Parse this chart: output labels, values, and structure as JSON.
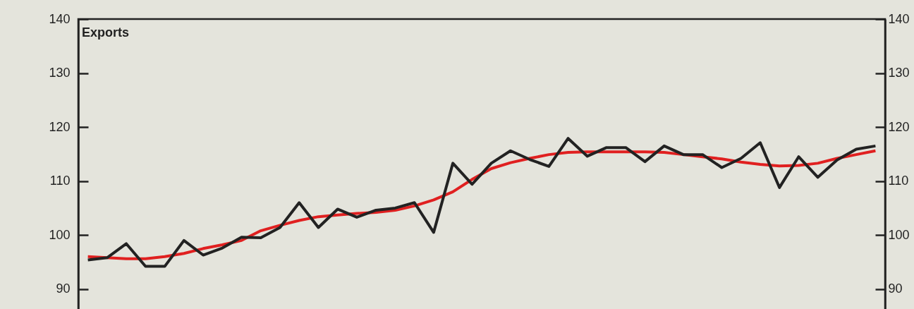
{
  "chart_data": {
    "type": "line",
    "title": "Exports",
    "categories": [
      null,
      null,
      null,
      null,
      null,
      null,
      null,
      null,
      null,
      null,
      null,
      null,
      null,
      null,
      null,
      null,
      null,
      null,
      null,
      null,
      null,
      null,
      null,
      null,
      null,
      null,
      null,
      null,
      null,
      null,
      null,
      null,
      null,
      null,
      null,
      null,
      null,
      null,
      null,
      null,
      null,
      null
    ],
    "series": [
      {
        "color": "#e02020",
        "values": [
          96.0,
          95.8,
          95.6,
          95.6,
          96.0,
          96.6,
          97.5,
          98.2,
          99.0,
          100.8,
          101.8,
          102.7,
          103.4,
          103.7,
          104.0,
          104.2,
          104.6,
          105.4,
          106.5,
          108.0,
          110.3,
          112.3,
          113.4,
          114.2,
          114.9,
          115.3,
          115.4,
          115.4,
          115.4,
          115.4,
          115.3,
          114.9,
          114.5,
          114.1,
          113.5,
          113.1,
          112.8,
          112.9,
          113.3,
          114.2,
          114.9,
          115.6
        ]
      },
      {
        "color": "#222222",
        "values": [
          95.4,
          95.8,
          98.4,
          94.2,
          94.2,
          99.0,
          96.3,
          97.6,
          99.6,
          99.5,
          101.4,
          106.0,
          101.4,
          104.8,
          103.3,
          104.6,
          105.0,
          106.0,
          100.5,
          113.3,
          109.4,
          113.3,
          115.6,
          114.0,
          112.7,
          117.9,
          114.6,
          116.2,
          116.2,
          113.6,
          116.5,
          114.9,
          114.9,
          112.5,
          114.2,
          117.1,
          108.8,
          114.5,
          110.7,
          113.9,
          115.9,
          116.5
        ]
      }
    ],
    "ylim": [
      85,
      140
    ],
    "yticks": [
      90,
      100,
      110,
      120,
      130,
      140
    ],
    "y2lim": [
      85,
      140
    ],
    "y2ticks": [
      90,
      100,
      110,
      120,
      130,
      140
    ],
    "tick_labels": "y",
    "grid": false,
    "marker": "none",
    "line_style": "solid"
  }
}
